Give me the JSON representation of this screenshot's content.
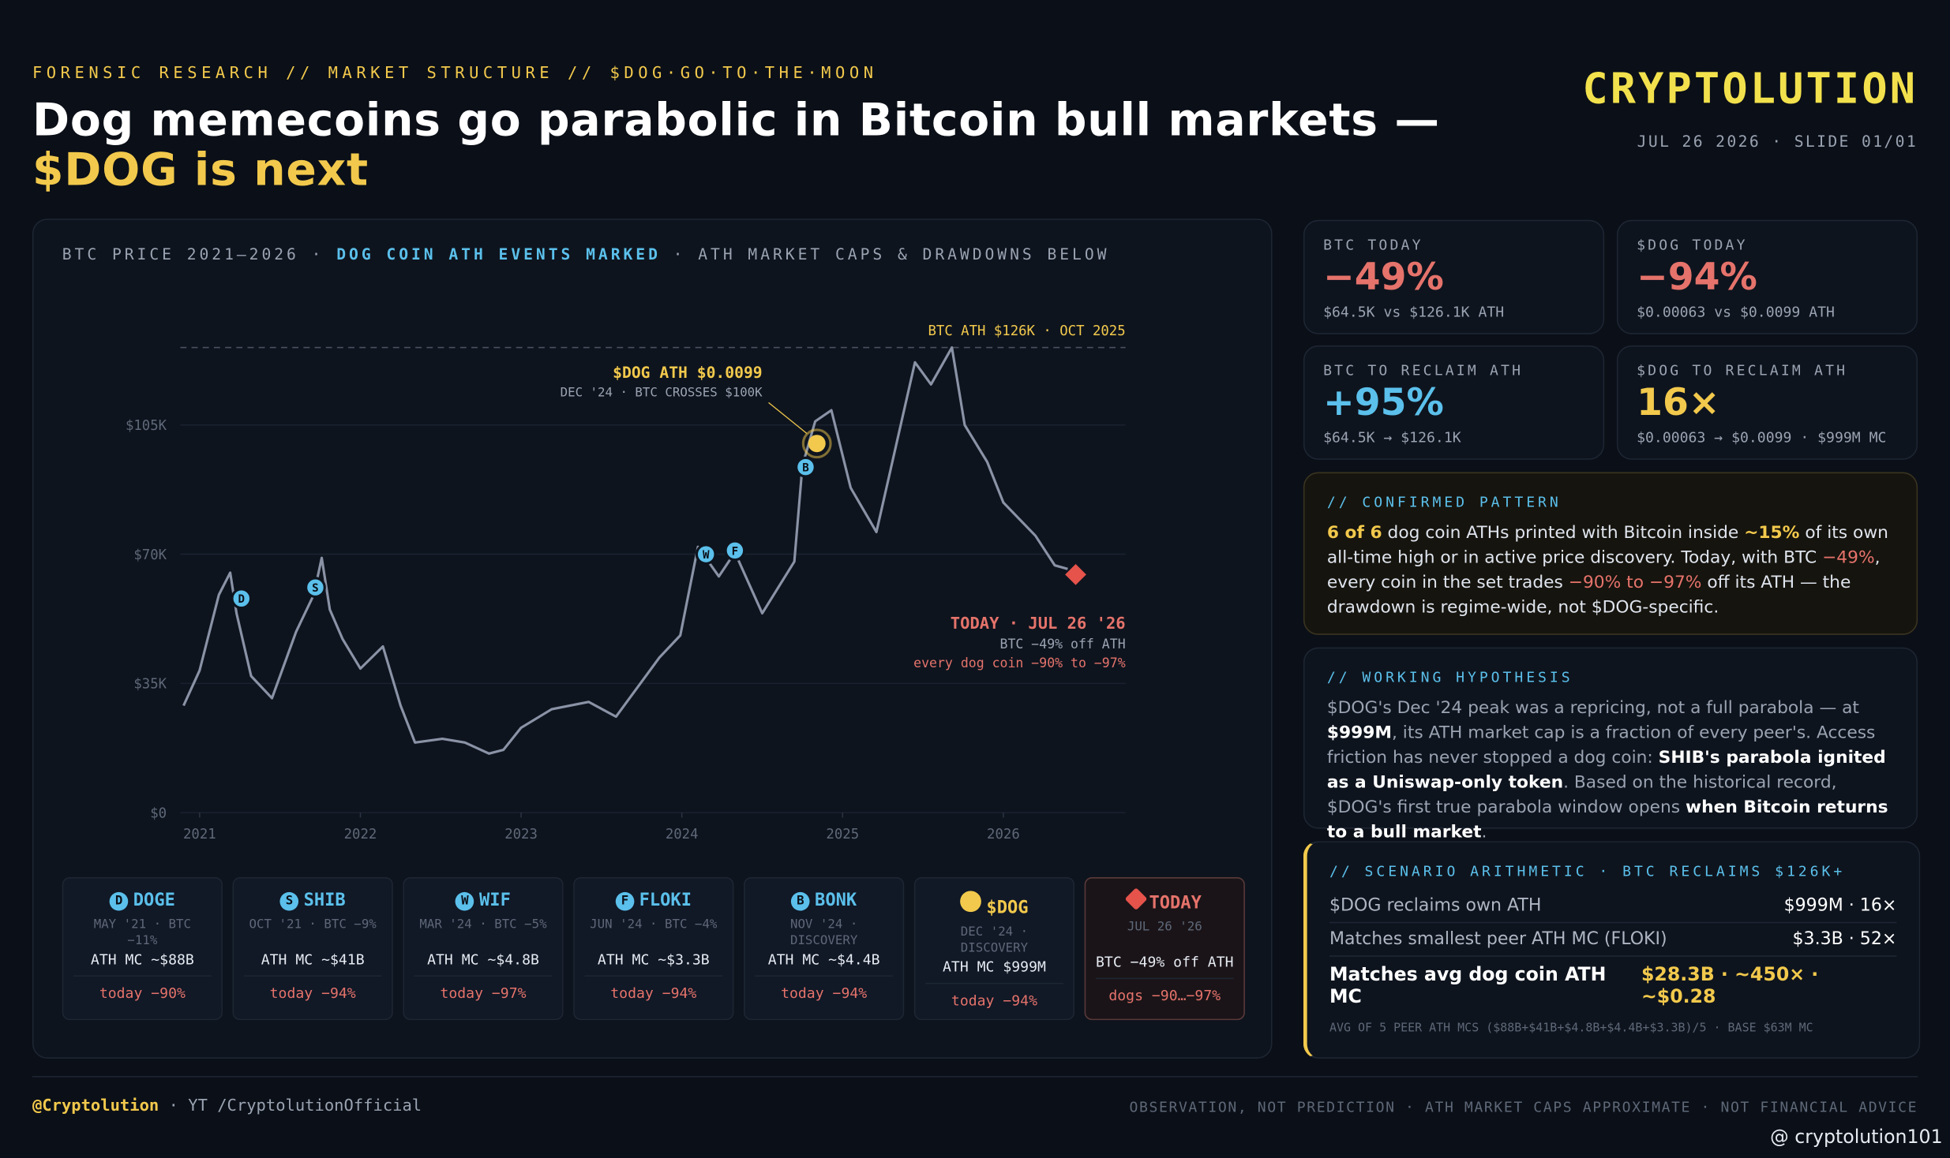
{
  "header": {
    "kicker": "FORENSIC RESEARCH // MARKET STRUCTURE // $DOG·GO·TO·THE·MOON",
    "title": [
      "Dog memecoins go parabolic in Bitcoin bull markets — ",
      "$DOG is next"
    ],
    "brand": "CRYPTOLUTION",
    "date": "JUL 26 2026 · SLIDE 01/01"
  },
  "chart_data": {
    "type": "line",
    "subtitle": [
      "BTC PRICE 2021–2026 · ",
      "DOG COIN ATH EVENTS MARKED",
      " · ATH MARKET CAPS & DRAWDOWNS BELOW"
    ],
    "color": "#8a93a6",
    "x": [
      2020.9,
      2021.0,
      2021.12,
      2021.19,
      2021.23,
      2021.32,
      2021.45,
      2021.6,
      2021.71,
      2021.76,
      2021.81,
      2021.89,
      2022.0,
      2022.14,
      2022.25,
      2022.34,
      2022.51,
      2022.65,
      2022.8,
      2022.89,
      2023.0,
      2023.19,
      2023.42,
      2023.59,
      2023.86,
      2023.99,
      2024.1,
      2024.23,
      2024.33,
      2024.5,
      2024.7,
      2024.75,
      2024.83,
      2024.93,
      2025.05,
      2025.21,
      2025.45,
      2025.55,
      2025.68,
      2025.76,
      2025.9,
      2026.0,
      2026.2,
      2026.32,
      2026.4
    ],
    "values": [
      29,
      38.5,
      59,
      65,
      54,
      37,
      31,
      49,
      59,
      69,
      55,
      47,
      39,
      45,
      29,
      19,
      20,
      19,
      16,
      17,
      23,
      28,
      30,
      26,
      42,
      48,
      72,
      64,
      70.5,
      54,
      68,
      94,
      106,
      109,
      88,
      76,
      122,
      116,
      126,
      105,
      95,
      84,
      75,
      67,
      66
    ],
    "xlim": [
      2020.88,
      2026.76
    ],
    "ylim": [
      0,
      136
    ],
    "xticks": [
      2021,
      2022,
      2023,
      2024,
      2025,
      2026
    ],
    "yticks": [
      {
        "value": 0,
        "label": "$0"
      },
      {
        "value": 35,
        "label": "$35K"
      },
      {
        "value": 70,
        "label": "$70K"
      },
      {
        "value": 105,
        "label": "$105K"
      }
    ],
    "ath_line": {
      "value": 126,
      "label": "BTC ATH $126K · OCT 2025"
    },
    "events": [
      {
        "label": "D",
        "x": 2021.26,
        "y": 58
      },
      {
        "label": "S",
        "x": 2021.72,
        "y": 61
      },
      {
        "label": "W",
        "x": 2024.15,
        "y": 70
      },
      {
        "label": "F",
        "x": 2024.33,
        "y": 71
      },
      {
        "label": "B",
        "x": 2024.77,
        "y": 93.6
      }
    ],
    "dog_event": {
      "x": 2024.84,
      "y": 100,
      "title": "$DOG ATH $0.0099",
      "note": "DEC '24 · BTC CROSSES $100K"
    },
    "today": {
      "x": 2026.45,
      "y": 64.5,
      "title": "TODAY · JUL 26 '26",
      "note1": "BTC −49% off ATH",
      "note2": "every dog coin −90% to −97%"
    }
  },
  "cards": [
    {
      "icon": "D",
      "name": "DOGE",
      "date": "MAY '21 · BTC −11%",
      "ath": "ATH MC ~$88B",
      "today": "today −90%"
    },
    {
      "icon": "S",
      "name": "SHIB",
      "date": "OCT '21 · BTC −9%",
      "ath": "ATH MC ~$41B",
      "today": "today −94%"
    },
    {
      "icon": "W",
      "name": "WIF",
      "date": "MAR '24 · BTC −5%",
      "ath": "ATH MC ~$4.8B",
      "today": "today −97%"
    },
    {
      "icon": "F",
      "name": "FLOKI",
      "date": "JUN '24 · BTC −4%",
      "ath": "ATH MC ~$3.3B",
      "today": "today −94%"
    },
    {
      "icon": "B",
      "name": "BONK",
      "date": "NOV '24 · DISCOVERY",
      "ath": "ATH MC ~$4.4B",
      "today": "today −94%"
    },
    {
      "name": "$DOG",
      "date": "DEC '24 · DISCOVERY",
      "ath": "ATH MC $999M",
      "today": "today −94%"
    },
    {
      "name": "TODAY",
      "date": "JUL 26 '26",
      "ath": "BTC −49% off ATH",
      "today": "dogs −90…−97%"
    }
  ],
  "stats": [
    {
      "label": "BTC TODAY",
      "value": "−49%",
      "sub": "$64.5K vs $126.1K ATH"
    },
    {
      "label": "$DOG TODAY",
      "value": "−94%",
      "sub": "$0.00063 vs $0.0099 ATH"
    },
    {
      "label": "BTC TO RECLAIM ATH",
      "value": "+95%",
      "sub": "$64.5K → $126.1K"
    },
    {
      "label": "$DOG TO RECLAIM ATH",
      "value": "16×",
      "sub": "$0.00063 → $0.0099 · $999M MC"
    }
  ],
  "pattern": {
    "heading": "// CONFIRMED PATTERN",
    "text": [
      "6 of 6",
      " dog coin ATHs printed with Bitcoin inside ",
      "~15%",
      " of its own all-time high or in active price discovery. Today, with BTC ",
      "−49%",
      ", every coin in the set trades ",
      "−90% to −97%",
      " off its ATH — the drawdown is regime-wide, not $DOG-specific."
    ]
  },
  "hypothesis": {
    "heading": "// WORKING HYPOTHESIS",
    "text": [
      "$DOG's Dec '24 peak was a repricing, not a full parabola — at ",
      "$999M",
      ", its ATH market cap is a fraction of every peer's. Access friction has never stopped a dog coin: ",
      "SHIB's parabola ignited as a Uniswap-only token",
      ". Based on the historical record, $DOG's first true parabola window opens ",
      "when Bitcoin returns to a bull market",
      "."
    ]
  },
  "scenario": {
    "heading": "// SCENARIO ARITHMETIC · BTC RECLAIMS $126K+",
    "rows": [
      {
        "label": "$DOG reclaims own ATH",
        "value": "$999M · 16×"
      },
      {
        "label": "Matches smallest peer ATH MC (FLOKI)",
        "value": "$3.3B · 52×"
      },
      {
        "label": "Matches avg dog coin ATH MC",
        "value": "$28.3B · ~450× · ~$0.28"
      }
    ],
    "note": "AVG OF 5 PEER ATH MCS ($88B+$41B+$4.8B+$4.4B+$3.3B)/5 · BASE $63M MC"
  },
  "footer": {
    "handle": "@Cryptolution",
    "yt": "· YT /CryptolutionOfficial",
    "disclaimer": "OBSERVATION, NOT PREDICTION · ATH MARKET CAPS APPROXIMATE · NOT FINANCIAL ADVICE",
    "watermark": "@ cryptolution101"
  }
}
